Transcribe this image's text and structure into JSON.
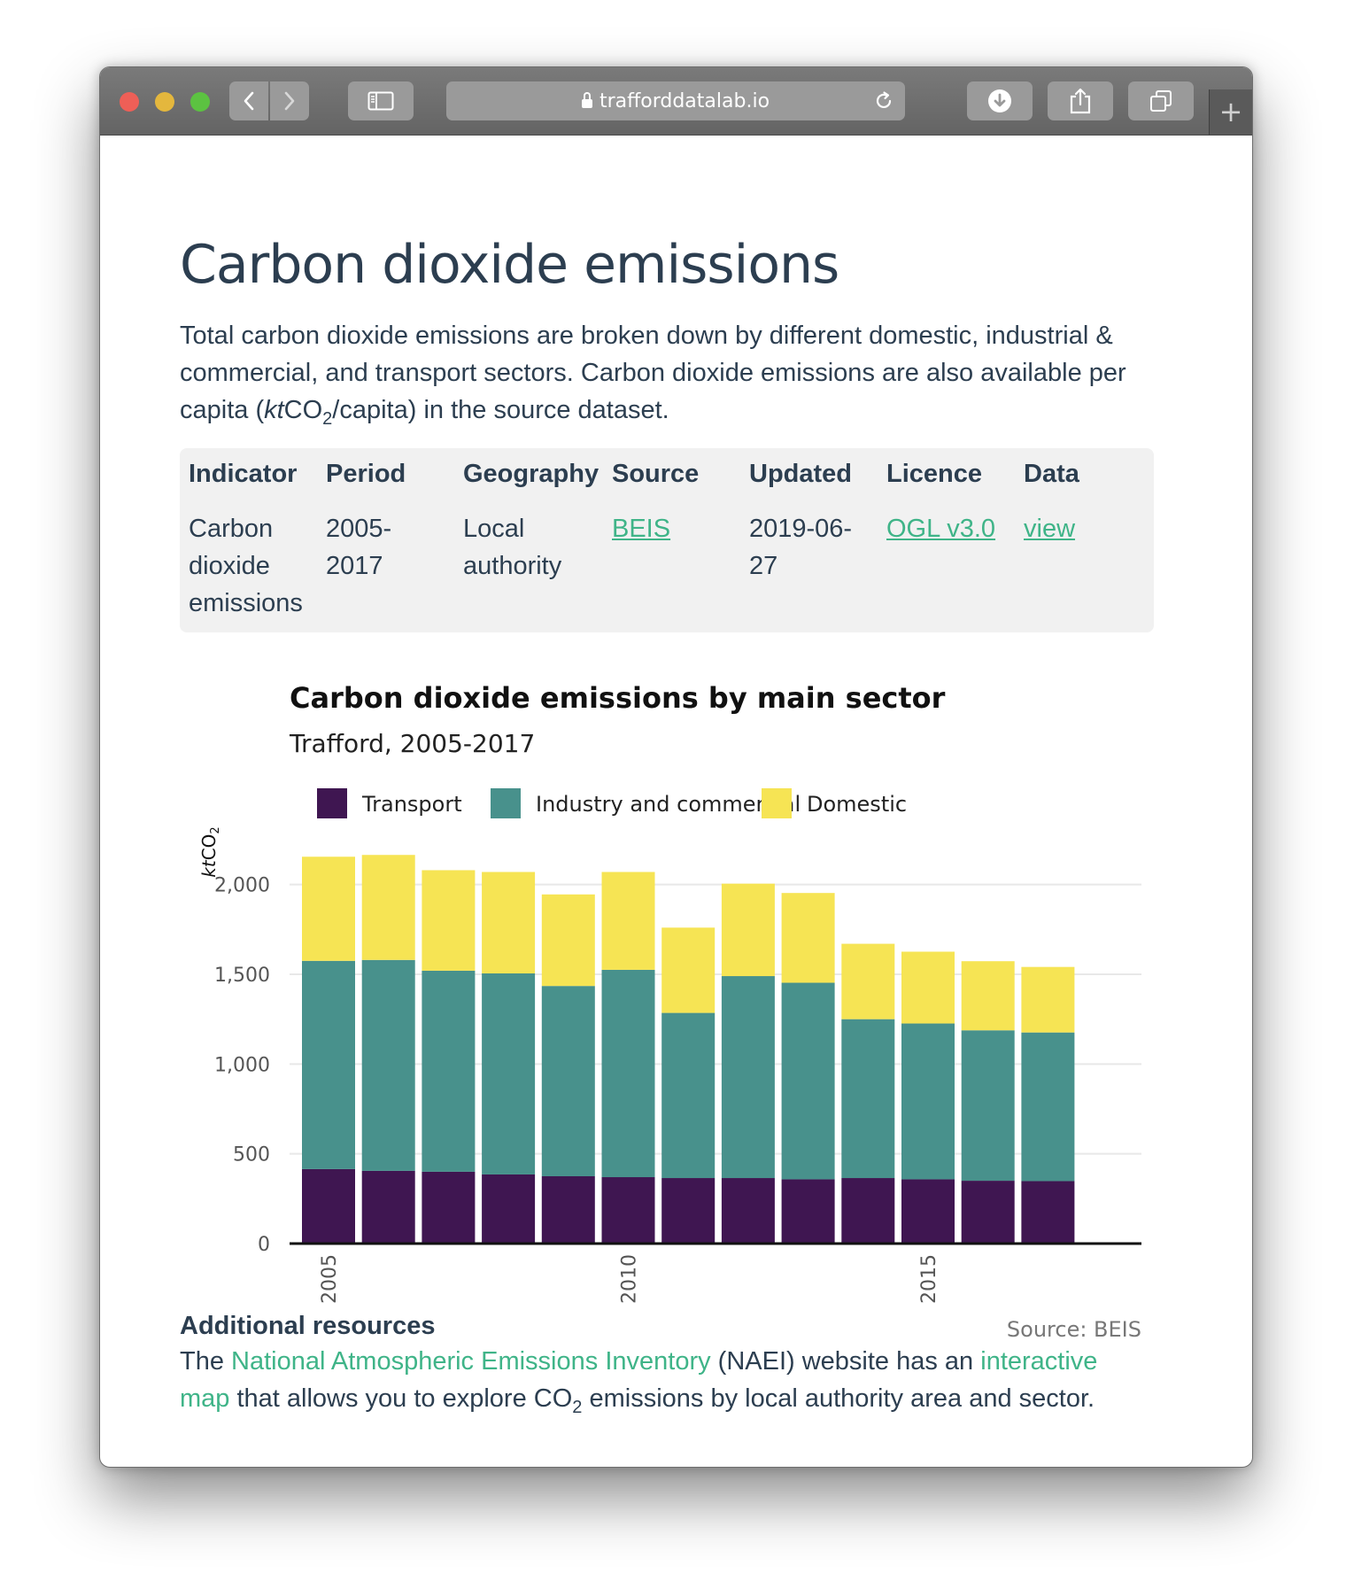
{
  "browser": {
    "url": "trafforddatalab.io",
    "new_tab_label": "+"
  },
  "page": {
    "title": "Carbon dioxide emissions",
    "intro_part1": "Total carbon dioxide emissions are broken down by different domestic, industrial & commercial, and transport sectors. Carbon dioxide emissions are also available per capita (",
    "intro_unit_kt": "kt",
    "intro_unit_co": "CO",
    "intro_unit_sub": "2",
    "intro_part2": "/capita) in the source dataset."
  },
  "meta_table": {
    "headers": {
      "indicator": "Indicator",
      "period": "Period",
      "geography": "Geography",
      "source": "Source",
      "updated": "Updated",
      "licence": "Licence",
      "data": "Data"
    },
    "values": {
      "indicator_1": "Carbon",
      "indicator_2": "dioxide",
      "indicator_3": "emissions",
      "period_1": "2005-",
      "period_2": "2017",
      "geography_1": "Local",
      "geography_2": "authority",
      "source": "BEIS",
      "updated_1": "2019-06-",
      "updated_2": "27",
      "licence": "OGL v3.0",
      "data": "view"
    }
  },
  "chart_data": {
    "type": "bar",
    "stacked": true,
    "title": "Carbon dioxide emissions by main sector",
    "subtitle": "Trafford, 2005-2017",
    "ylabel_kt": "kt",
    "ylabel_co": "CO",
    "ylabel_sub": "2",
    "caption": "Source: BEIS",
    "ylim": [
      0,
      2250
    ],
    "yticks": [
      0,
      500,
      1000,
      1500,
      2000
    ],
    "ytick_labels": [
      "0",
      "500",
      "1,000",
      "1,500",
      "2,000"
    ],
    "xticks": [
      2005,
      2010,
      2015
    ],
    "xtick_labels": [
      "2005",
      "2010",
      "2015"
    ],
    "legend_position": "top",
    "grid": true,
    "x": [
      2005,
      2006,
      2007,
      2008,
      2009,
      2010,
      2011,
      2012,
      2013,
      2014,
      2015,
      2016,
      2017
    ],
    "series": [
      {
        "name": "Transport",
        "color": "#3f1651",
        "values": [
          415,
          405,
          400,
          385,
          375,
          370,
          365,
          365,
          358,
          365,
          358,
          350,
          348
        ]
      },
      {
        "name": "Industry and commercial",
        "color": "#48918c",
        "values": [
          1160,
          1175,
          1120,
          1120,
          1060,
          1155,
          920,
          1125,
          1095,
          885,
          868,
          838,
          828
        ]
      },
      {
        "name": "Domestic",
        "color": "#f6e454",
        "values": [
          580,
          585,
          560,
          565,
          510,
          545,
          475,
          515,
          500,
          420,
          400,
          385,
          365
        ]
      }
    ]
  },
  "resources": {
    "title": "Additional resources",
    "text_1": "The ",
    "link_naei": "National Atmospheric Emissions Inventory",
    "text_2": " (NAEI) website has an ",
    "link_map": "interactive map",
    "text_3": " that allows you to explore CO",
    "text_sub": "2",
    "text_4": " emissions by local authority area and sector."
  }
}
